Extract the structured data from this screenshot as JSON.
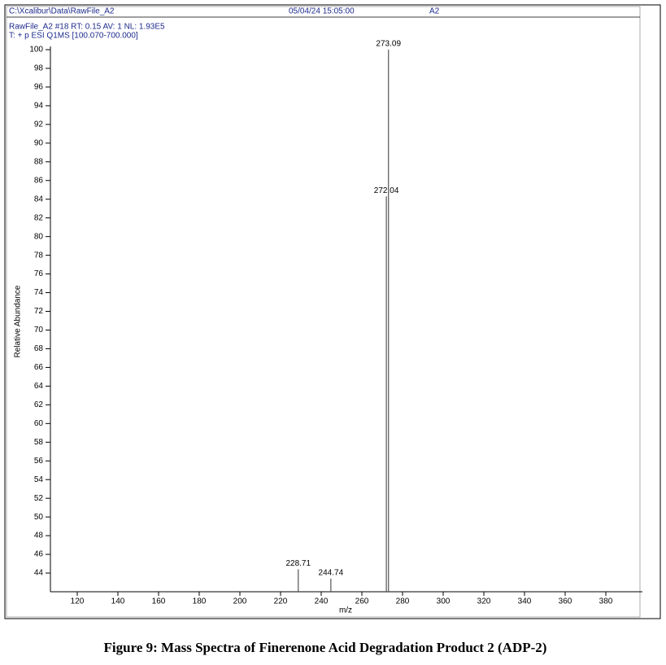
{
  "header": {
    "path": "C:\\Xcalibur\\Data\\RawFile_A2",
    "datetime": "05/04/24 15:05:00",
    "sample": "A2"
  },
  "chart_data": {
    "type": "stem",
    "subtitle": [
      "RawFile_A2 #18  RT: 0.15  AV: 1  NL: 1.93E5",
      "T: + p ESI Q1MS [100.070-700.000]"
    ],
    "x_label": "m/z",
    "y_label": "Relative Abundance",
    "x": [
      228.71,
      244.74,
      272.04,
      273.09
    ],
    "values": [
      44.4,
      43.4,
      84.3,
      100
    ],
    "color": "#555555",
    "xlim": [
      106.8,
      398
    ],
    "ylim": [
      42,
      100
    ],
    "xticks": [
      120,
      140,
      160,
      180,
      200,
      220,
      240,
      260,
      280,
      300,
      320,
      340,
      360,
      380
    ],
    "yticks": [
      44,
      46,
      48,
      50,
      52,
      54,
      56,
      58,
      60,
      62,
      64,
      66,
      68,
      70,
      72,
      74,
      76,
      78,
      80,
      82,
      84,
      86,
      88,
      90,
      92,
      94,
      96,
      98,
      100
    ]
  },
  "caption": "Figure 9: Mass Spectra of Finerenone Acid Degradation Product 2 (ADP-2)"
}
